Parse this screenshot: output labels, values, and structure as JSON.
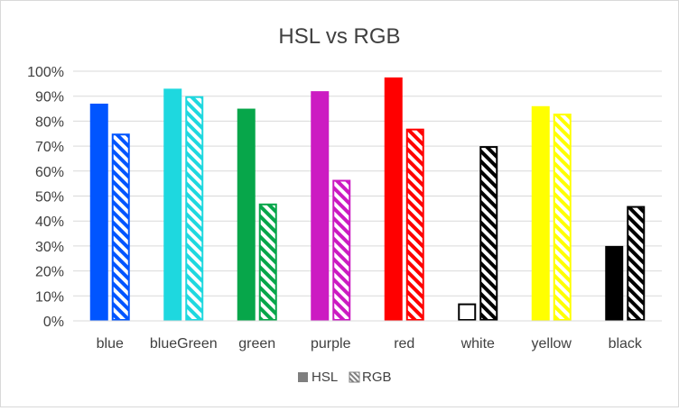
{
  "chart_data": {
    "type": "bar",
    "title": "HSL vs RGB",
    "xlabel": "",
    "ylabel": "",
    "ylim": [
      0,
      1
    ],
    "y_ticks": [
      "0%",
      "10%",
      "20%",
      "30%",
      "40%",
      "50%",
      "60%",
      "70%",
      "80%",
      "90%",
      "100%"
    ],
    "gridlines": true,
    "legend_position": "bottom",
    "categories": [
      "blue",
      "blueGreen",
      "green",
      "purple",
      "red",
      "white",
      "yellow",
      "black"
    ],
    "bar_colors": [
      "#0055ff",
      "#1ed8df",
      "#07a64a",
      "#cc1bc2",
      "#ff0000",
      "#000000",
      "#ffff00",
      "#000000"
    ],
    "series": [
      {
        "name": "HSL",
        "style": "solid",
        "values": [
          0.87,
          0.93,
          0.85,
          0.92,
          0.975,
          0.07,
          0.86,
          0.3
        ]
      },
      {
        "name": "RGB",
        "style": "hatched",
        "values": [
          0.75,
          0.9,
          0.47,
          0.565,
          0.77,
          0.7,
          0.83,
          0.46
        ]
      }
    ]
  }
}
